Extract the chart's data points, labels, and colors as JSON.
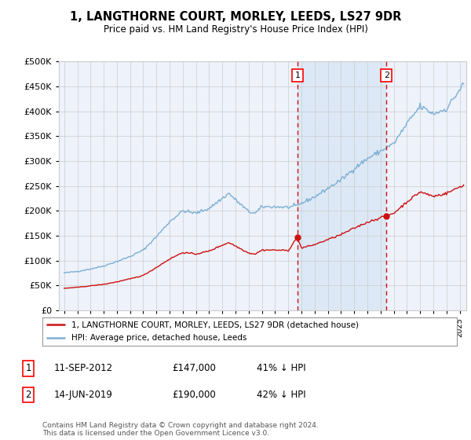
{
  "title": "1, LANGTHORNE COURT, MORLEY, LEEDS, LS27 9DR",
  "subtitle": "Price paid vs. HM Land Registry's House Price Index (HPI)",
  "legend_line1": "1, LANGTHORNE COURT, MORLEY, LEEDS, LS27 9DR (detached house)",
  "legend_line2": "HPI: Average price, detached house, Leeds",
  "footnote": "Contains HM Land Registry data © Crown copyright and database right 2024.\nThis data is licensed under the Open Government Licence v3.0.",
  "sale1_date_num": 2012.69,
  "sale1_label": "1",
  "sale1_text": "11-SEP-2012",
  "sale1_price": 147000,
  "sale1_pct": "41% ↓ HPI",
  "sale2_date_num": 2019.45,
  "sale2_label": "2",
  "sale2_text": "14-JUN-2019",
  "sale2_price": 190000,
  "sale2_pct": "42% ↓ HPI",
  "ylim": [
    0,
    500000
  ],
  "xlim_left": 1994.6,
  "xlim_right": 2025.5,
  "hpi_color": "#7bafd4",
  "price_color": "#cc1111",
  "bg_color": "#eef2fa",
  "shade_color": "#dce8f5",
  "grid_color": "#cccccc"
}
